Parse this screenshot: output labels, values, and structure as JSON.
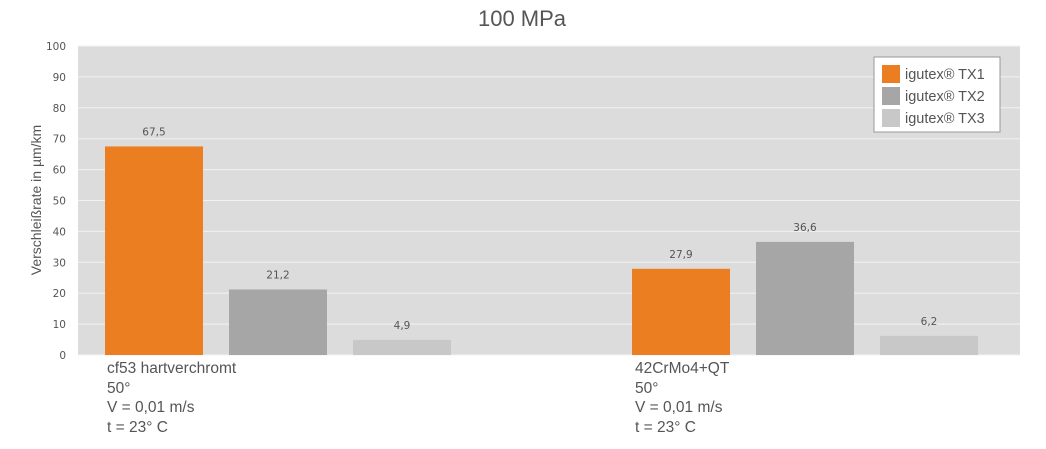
{
  "chart_data": {
    "type": "bar",
    "title": "100 MPa",
    "ylabel": "Verschleißrate in µm/km",
    "xlabel": "",
    "ylim": [
      0,
      100
    ],
    "yticks": [
      "0",
      "10",
      "20",
      "30",
      "40",
      "50",
      "60",
      "70",
      "80",
      "90",
      "100"
    ],
    "grid": true,
    "legend_position": "top-right",
    "categories": [
      [
        "cf53 hartverchromt",
        "50°",
        "V = 0,01 m/s",
        "t = 23° C"
      ],
      [
        "42CrMo4+QT",
        "50°",
        "V = 0,01 m/s",
        "t = 23° C"
      ]
    ],
    "series": [
      {
        "name": "igutex® TX1",
        "color": "#ec7e22",
        "values": [
          67.5,
          27.9
        ],
        "labels": [
          "67,5",
          "27,9"
        ]
      },
      {
        "name": "igutex® TX2",
        "color": "#a6a6a6",
        "values": [
          21.2,
          36.6
        ],
        "labels": [
          "21,2",
          "36,6"
        ]
      },
      {
        "name": "igutex® TX3",
        "color": "#c8c8c8",
        "values": [
          4.9,
          6.2
        ],
        "labels": [
          "4,9",
          "6,2"
        ]
      }
    ],
    "plot_background": "#dcdcdc"
  }
}
